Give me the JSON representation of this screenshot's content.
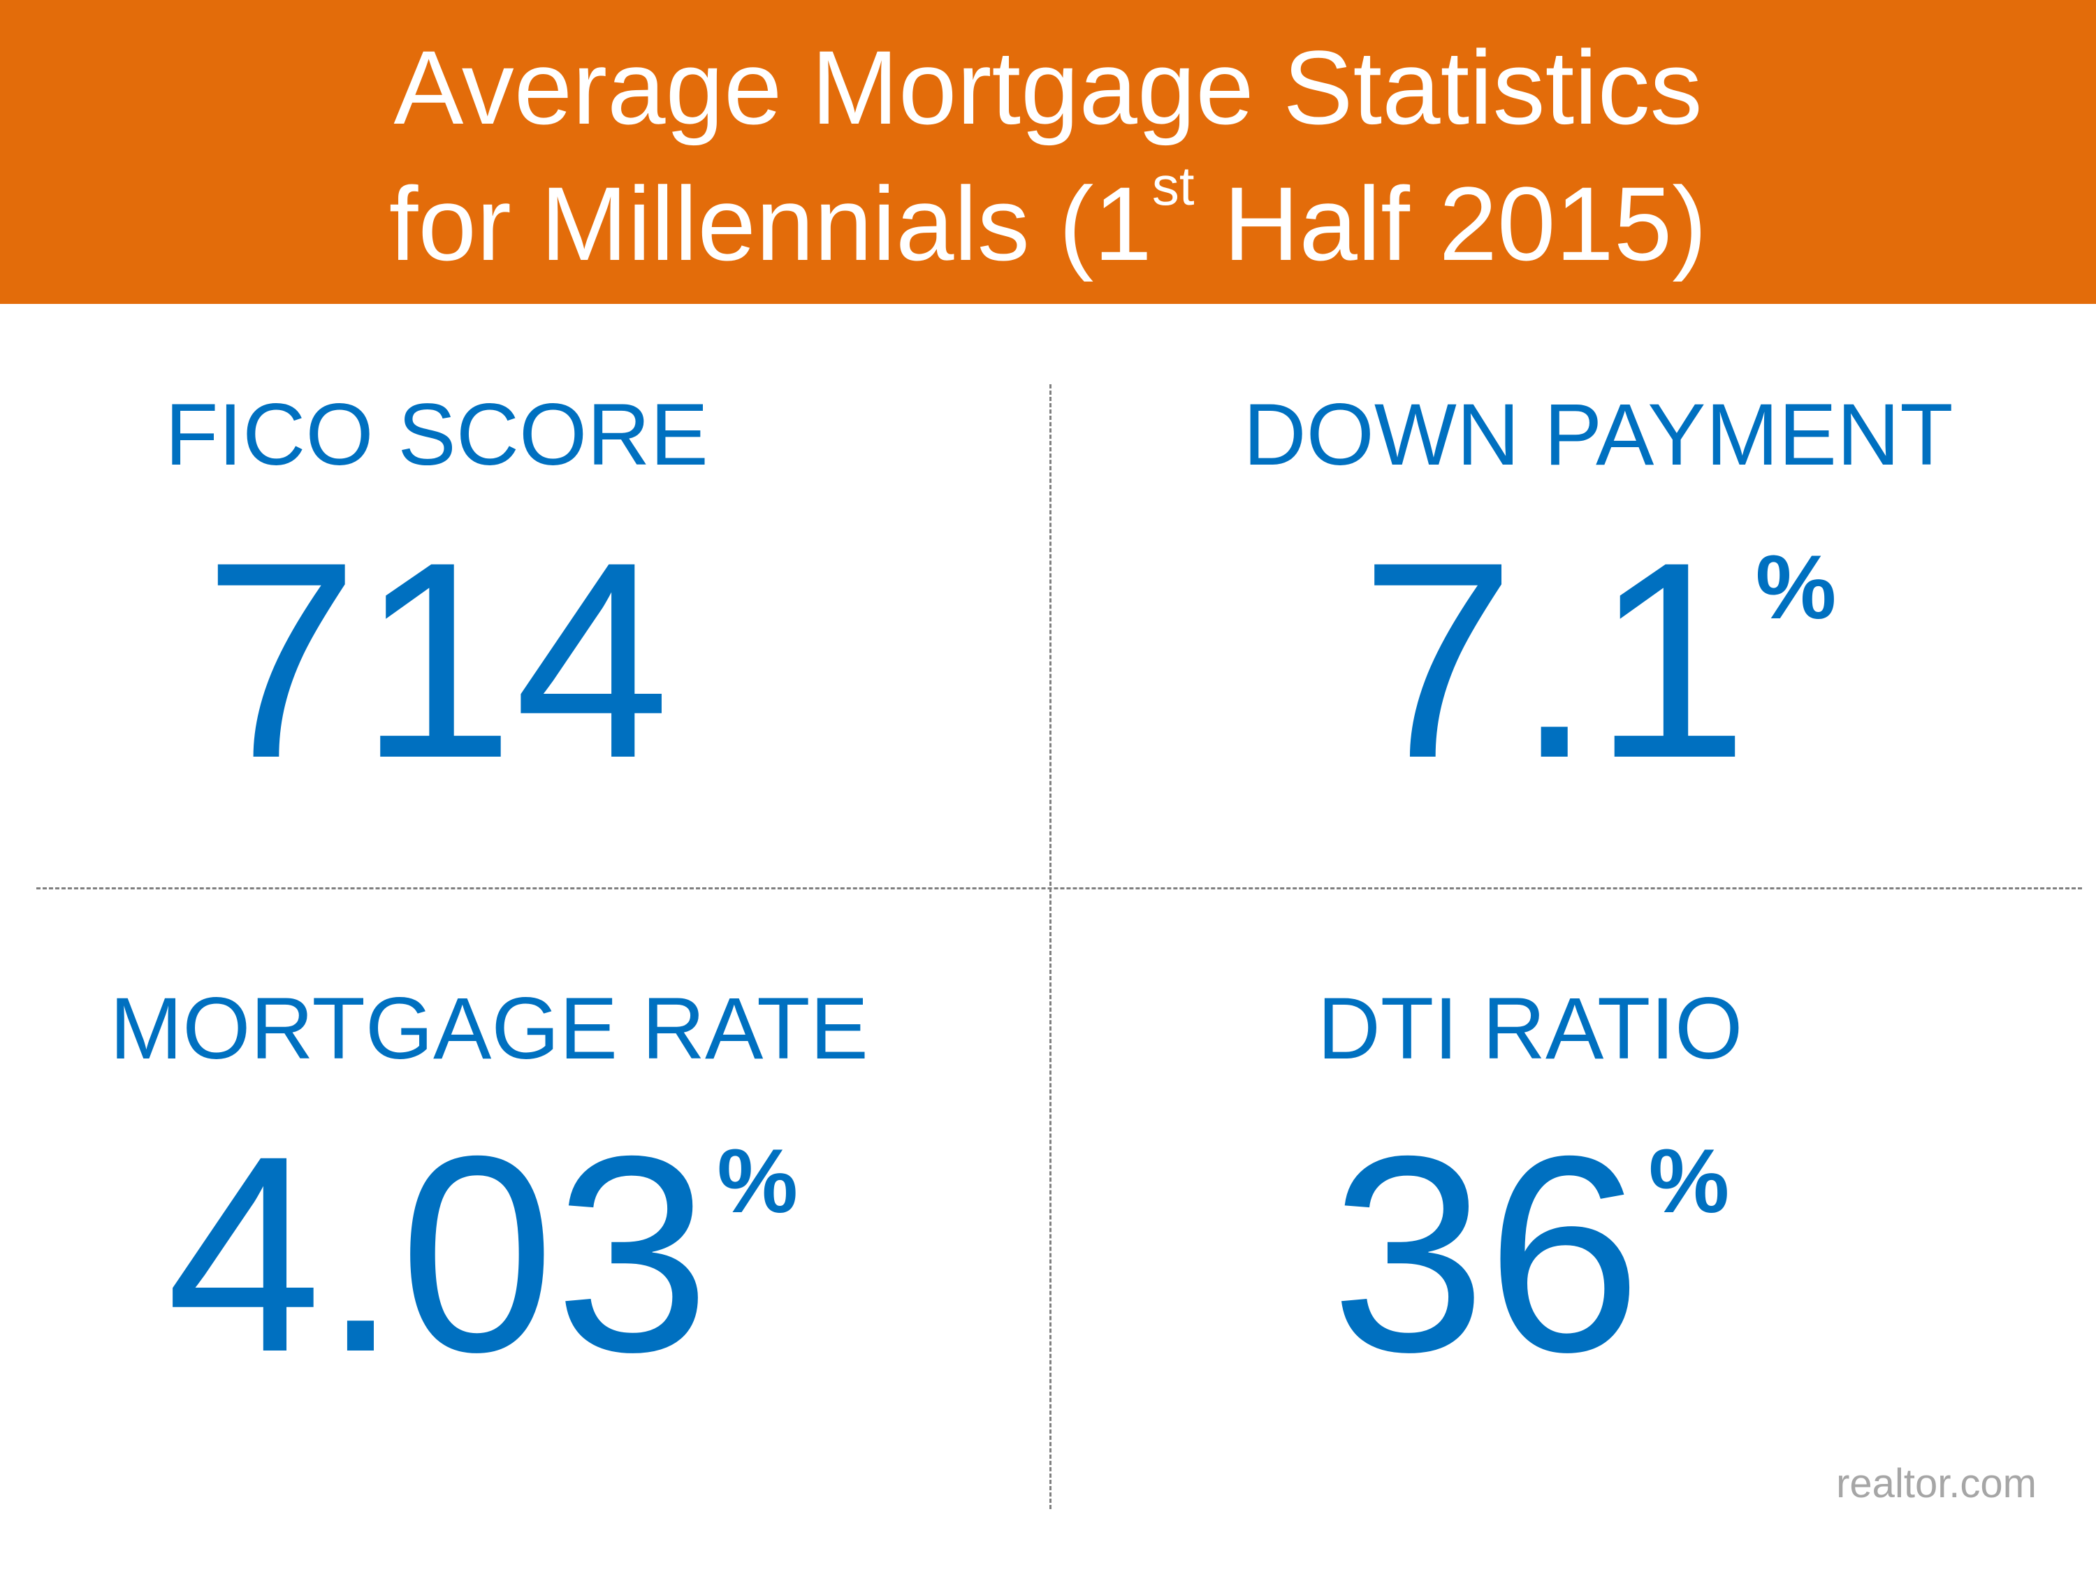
{
  "header": {
    "title_line1": "Average Mortgage Statistics",
    "title_line2_prefix": "for Millennials (1",
    "title_line2_sup": "st",
    "title_line2_suffix": " Half 2015)",
    "background_color": "#e36c0a"
  },
  "stats": {
    "fico": {
      "label": "FICO SCORE",
      "value": "714"
    },
    "down_payment": {
      "label": "DOWN PAYMENT",
      "value": "7.1",
      "unit": "%"
    },
    "mortgage_rate": {
      "label": "MORTGAGE RATE",
      "value": "4.03",
      "unit": "%"
    },
    "dti": {
      "label": "DTI RATIO",
      "value": "36",
      "unit": "%"
    }
  },
  "colors": {
    "accent": "#0070c0",
    "divider": "#7f7f7f",
    "source": "#a6a6a6"
  },
  "source": "realtor.com"
}
